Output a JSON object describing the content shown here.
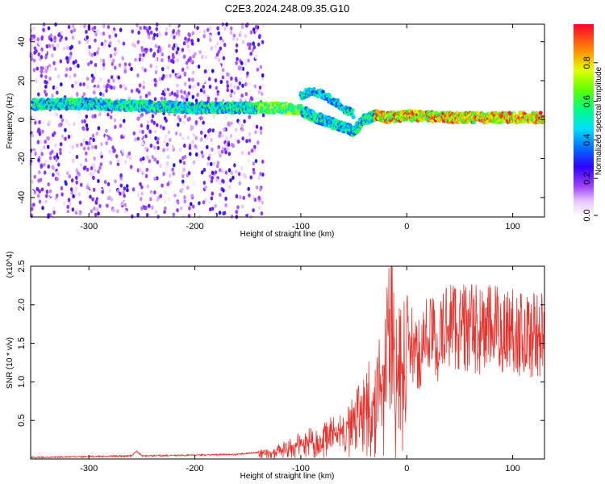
{
  "title": "C2E3.2024.248.09.35.G10",
  "colors": {
    "snr_line": "#e8342f",
    "axes": "#000000",
    "spectrogram_scale": [
      "#ffffff",
      "#e9d6ff",
      "#c597ff",
      "#7b1cff",
      "#2a00ff",
      "#0060ff",
      "#00d2ff",
      "#00ff80",
      "#a8ff00",
      "#ffe000",
      "#ff3a00",
      "#ff0000"
    ]
  },
  "chart_data": [
    {
      "type": "heatmap",
      "title": "C2E3.2024.248.09.35.G10",
      "xlabel": "Height of straight line (km)",
      "ylabel": "Frequency (Hz)",
      "xlim": [
        -355,
        130
      ],
      "ylim": [
        -50,
        49
      ],
      "x_ticks": [
        -300,
        -200,
        -100,
        0,
        100
      ],
      "x_tick_labels": [
        "-300",
        "-200",
        "-100",
        "0",
        "100"
      ],
      "y_ticks": [
        -40,
        -20,
        0,
        20,
        40
      ],
      "y_tick_labels": [
        "-40",
        "-20",
        "0",
        "20",
        "40"
      ],
      "colorbar": {
        "label": "Normalized spectral amplitude",
        "range": [
          0.0,
          1.0
        ],
        "ticks": [
          0.0,
          0.2,
          0.4,
          0.6,
          0.8
        ],
        "tick_labels": [
          "0.0",
          "0.2",
          "0.4",
          "0.6",
          "0.8"
        ]
      },
      "dominant_frequency_track": {
        "x": [
          -350,
          -300,
          -250,
          -200,
          -150,
          -120,
          -100,
          -90,
          -80,
          -60,
          -50,
          -40,
          -30,
          -20,
          0,
          50,
          100,
          130
        ],
        "y": [
          8,
          8,
          7,
          6,
          6,
          6,
          5,
          2,
          0,
          -4,
          -6,
          0,
          2,
          1,
          2,
          1,
          1,
          1
        ]
      },
      "upper_branch": {
        "x": [
          -100,
          -90,
          -80,
          -70,
          -60,
          -50
        ],
        "y": [
          12,
          15,
          13,
          10,
          6,
          3
        ]
      }
    },
    {
      "type": "line",
      "xlabel": "Height of straight line (km)",
      "ylabel": "SNR (10 * v/v)",
      "y_multiplier": "(x10^4)",
      "xlim": [
        -355,
        130
      ],
      "ylim": [
        0,
        2.5
      ],
      "x_ticks": [
        -300,
        -200,
        -100,
        0,
        100
      ],
      "x_tick_labels": [
        "-300",
        "-200",
        "-100",
        "0",
        "100"
      ],
      "y_ticks": [
        0.5,
        1.0,
        1.5,
        2.0,
        2.5
      ],
      "y_tick_labels": [
        "0.5",
        "1.0",
        "1.5",
        "2.0",
        "2.5"
      ],
      "series": [
        {
          "x": [
            -355,
            -300,
            -260,
            -255,
            -250,
            -200,
            -160,
            -130,
            -110,
            -100,
            -90,
            -80,
            -70,
            -60,
            -50,
            -40,
            -30,
            -20,
            -15,
            -10,
            0,
            10,
            20,
            30,
            40,
            50,
            60,
            70,
            80,
            90,
            100,
            110,
            120,
            130
          ],
          "y": [
            0.02,
            0.03,
            0.04,
            0.1,
            0.04,
            0.05,
            0.06,
            0.1,
            0.2,
            0.25,
            0.3,
            0.35,
            0.4,
            0.45,
            0.6,
            0.9,
            1.0,
            1.4,
            2.4,
            1.4,
            1.6,
            1.3,
            1.65,
            1.5,
            1.8,
            1.7,
            1.7,
            1.65,
            1.7,
            1.65,
            1.7,
            1.6,
            1.62,
            1.6
          ]
        }
      ]
    }
  ]
}
